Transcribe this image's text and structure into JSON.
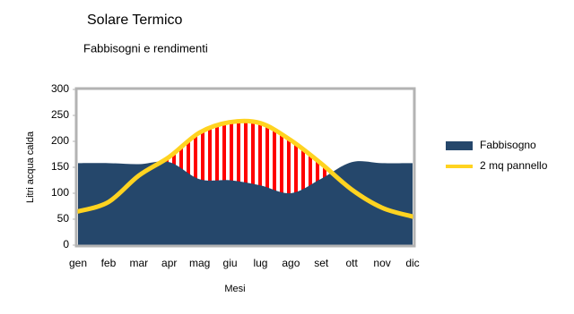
{
  "chart_data": {
    "type": "area",
    "title": "Solare Termico",
    "subtitle": "Fabbisogni e rendimenti",
    "x_label": "Mesi",
    "y_label": "Litri acqua calda",
    "categories": [
      "gen",
      "feb",
      "mar",
      "apr",
      "mag",
      "giu",
      "lug",
      "ago",
      "set",
      "ott",
      "nov",
      "dic"
    ],
    "series": [
      {
        "name": "Fabbisogno",
        "type": "area",
        "color": "#25476b",
        "values": [
          158,
          158,
          156,
          160,
          127,
          125,
          115,
          100,
          128,
          160,
          158,
          158
        ]
      },
      {
        "name": "2 mq pannello",
        "type": "line",
        "color": "#ffd320",
        "values": [
          65,
          83,
          134,
          170,
          217,
          237,
          235,
          202,
          157,
          107,
          72,
          55
        ]
      }
    ],
    "surplus_color": "#ff0000",
    "ylim": [
      0,
      300
    ],
    "yticks": [
      0,
      50,
      100,
      150,
      200,
      250,
      300
    ],
    "grid": false,
    "legend": "right"
  }
}
